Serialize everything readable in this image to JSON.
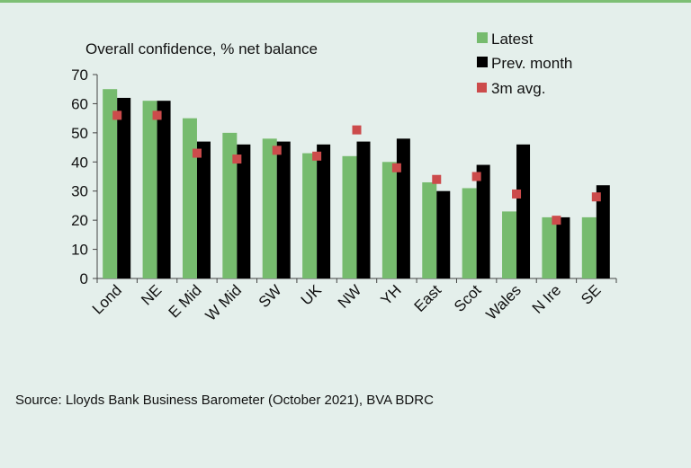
{
  "chart_data": {
    "type": "bar",
    "title": "Overall confidence, % net balance",
    "categories": [
      "Lond",
      "NE",
      "E Mid",
      "W Mid",
      "SW",
      "UK",
      "NW",
      "YH",
      "East",
      "Scot",
      "Wales",
      "N Ire",
      "SE"
    ],
    "series": [
      {
        "name": "Latest",
        "type": "bar",
        "color": "#76bb6e",
        "values": [
          65,
          61,
          55,
          50,
          48,
          43,
          42,
          40,
          33,
          31,
          23,
          21,
          21
        ]
      },
      {
        "name": "Prev. month",
        "type": "bar",
        "color": "#000000",
        "values": [
          62,
          61,
          47,
          46,
          47,
          46,
          47,
          48,
          30,
          39,
          46,
          21,
          32
        ]
      },
      {
        "name": "3m avg.",
        "type": "marker",
        "color": "#cc4b4b",
        "values": [
          56,
          56,
          43,
          41,
          44,
          42,
          51,
          38,
          34,
          35,
          29,
          20,
          28
        ]
      }
    ],
    "ylim": [
      0,
      70
    ],
    "yticks": [
      0,
      10,
      20,
      30,
      40,
      50,
      60,
      70
    ],
    "grid": false,
    "legend": "top-right"
  },
  "source": "Source: Lloyds Bank Business Barometer (October 2021), BVA BDRC"
}
